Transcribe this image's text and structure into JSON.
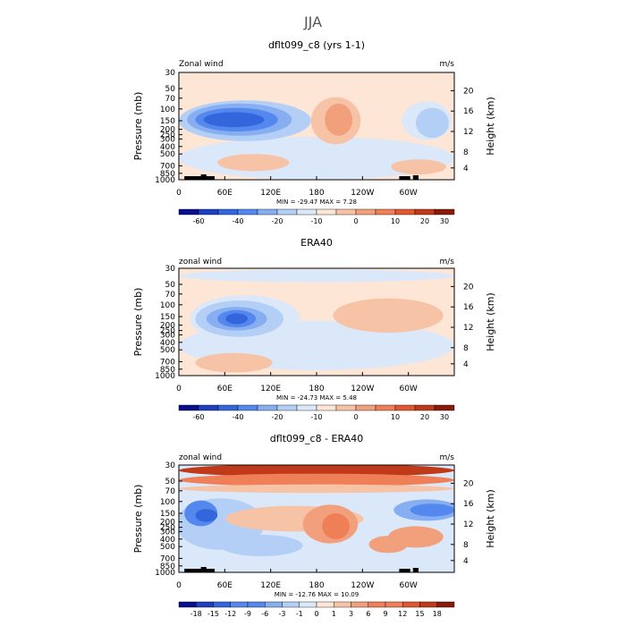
{
  "figure_title": "JJA",
  "chart_data": [
    {
      "type": "heatmap",
      "title": "dflt099_c8 (yrs 1-1)",
      "variable": "Zonal wind",
      "units": "m/s",
      "ylabel": "Pressure (mb)",
      "y2label": "Height (km)",
      "x_ticks": [
        "0",
        "60E",
        "120E",
        "180",
        "120W",
        "60W"
      ],
      "y_ticks": [
        "30",
        "50",
        "70",
        "100",
        "150",
        "200",
        "250",
        "300",
        "400",
        "500",
        "700",
        "850",
        "1000"
      ],
      "y2_ticks": [
        "20",
        "16",
        "12",
        "8",
        "4"
      ],
      "stats": "MIN = -29.47   MAX =  7.28",
      "colorbar_labels": [
        "-60",
        "-40",
        "-20",
        "-10",
        "0",
        "10",
        "20",
        "30"
      ]
    },
    {
      "type": "heatmap",
      "title": "ERA40",
      "variable": "zonal wind",
      "units": "m/s",
      "ylabel": "Pressure (mb)",
      "y2label": "Height (km)",
      "x_ticks": [
        "0",
        "60E",
        "120E",
        "180",
        "120W",
        "60W"
      ],
      "y_ticks": [
        "30",
        "50",
        "70",
        "100",
        "150",
        "200",
        "250",
        "300",
        "400",
        "500",
        "700",
        "850",
        "1000"
      ],
      "y2_ticks": [
        "20",
        "16",
        "12",
        "8",
        "4"
      ],
      "stats": "MIN = -24.73   MAX =  5.48",
      "colorbar_labels": [
        "-60",
        "-40",
        "-20",
        "-10",
        "0",
        "10",
        "20",
        "30"
      ]
    },
    {
      "type": "heatmap",
      "title": "dflt099_c8 - ERA40",
      "variable": "zonal wind",
      "units": "m/s",
      "ylabel": "Pressure (mb)",
      "y2label": "Height (km)",
      "x_ticks": [
        "0",
        "60E",
        "120E",
        "180",
        "120W",
        "60W"
      ],
      "y_ticks": [
        "30",
        "50",
        "70",
        "100",
        "150",
        "200",
        "250",
        "300",
        "400",
        "500",
        "700",
        "850",
        "1000"
      ],
      "y2_ticks": [
        "20",
        "16",
        "12",
        "8",
        "4"
      ],
      "stats": "MIN = -12.76   MAX =  10.09",
      "colorbar_labels": [
        "-18",
        "-15",
        "-12",
        "-9",
        "-6",
        "-3",
        "-1",
        "0",
        "1",
        "3",
        "6",
        "9",
        "12",
        "15",
        "18"
      ]
    }
  ],
  "palette": [
    "#0a0f8c",
    "#1e3fbf",
    "#3366dd",
    "#5588ee",
    "#86aef0",
    "#b4cff5",
    "#dbe8fa",
    "#fde6d6",
    "#f7c3a6",
    "#f2a07c",
    "#ee7f57",
    "#e0582f",
    "#c03a1a",
    "#8a1a0a"
  ]
}
